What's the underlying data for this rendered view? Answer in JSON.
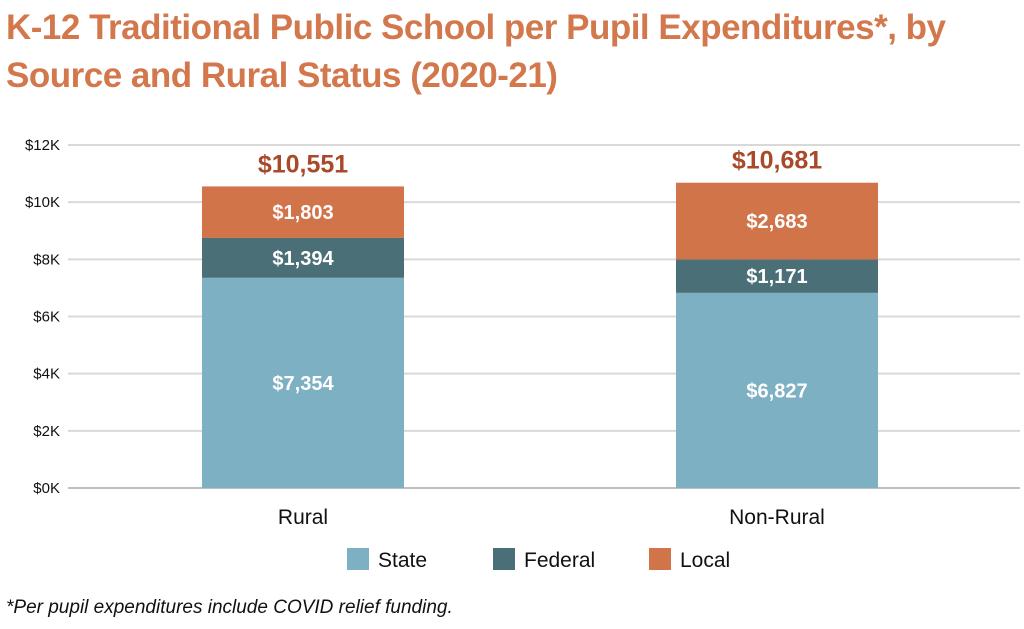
{
  "title": "K-12 Traditional Public School per Pupil Expenditures*, by Source and Rural Status (2020-21)",
  "footnote": "*Per pupil expenditures include COVID relief funding.",
  "colors": {
    "title": "#D3784C",
    "total_label": "#A84A2A",
    "grid": "#D9D9D9",
    "axis_text": "#111111"
  },
  "chart_data": {
    "type": "bar",
    "stacked": true,
    "categories": [
      "Rural",
      "Non-Rural"
    ],
    "series": [
      {
        "name": "State",
        "color": "#7EB0C4",
        "values": [
          7354,
          6827
        ],
        "labels": [
          "$7,354",
          "$6,827"
        ]
      },
      {
        "name": "Federal",
        "color": "#4A6F77",
        "values": [
          1394,
          1171
        ],
        "labels": [
          "$1,394",
          "$1,171"
        ]
      },
      {
        "name": "Local",
        "color": "#D2744A",
        "values": [
          1803,
          2683
        ],
        "labels": [
          "$1,803",
          "$2,683"
        ]
      }
    ],
    "totals": [
      10551,
      10681
    ],
    "total_labels": [
      "$10,551",
      "$10,681"
    ],
    "ylim": [
      0,
      12000
    ],
    "yticks": [
      0,
      2000,
      4000,
      6000,
      8000,
      10000,
      12000
    ],
    "ytick_labels": [
      "$0K",
      "$2K",
      "$4K",
      "$6K",
      "$8K",
      "$10K",
      "$12K"
    ],
    "grid": true,
    "legend_position": "bottom"
  }
}
